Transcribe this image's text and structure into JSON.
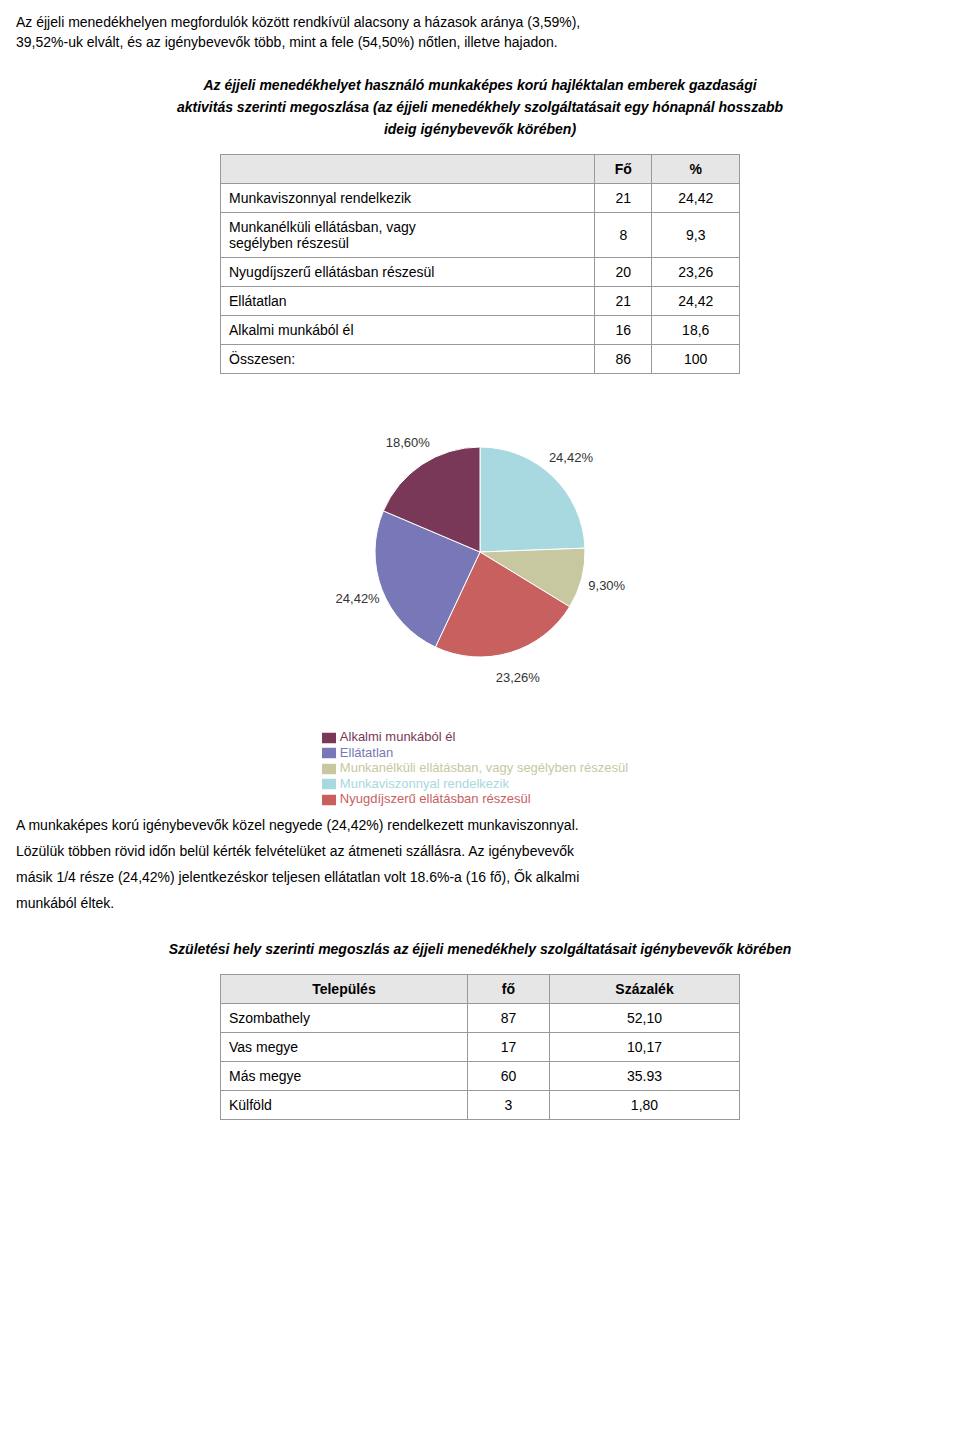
{
  "chart_data": [
    {
      "type": "table",
      "annotations": [
        "Az éjjeli menedékhelyen megfordulók között rendkívül alacsony a házasok aránya (3,59%),",
        "39,52%-uk elvált, és az igénybevevők több, mint a fele (54,50%) nőtlen, illetve hajadon."
      ],
      "title": "Az éjjeli menedékhelyet használó munkaképes korú hajléktalan emberek gazdasági\naktivitás szerinti megoszlása (az éjjeli menedékhely szolgáltatásait egy hónapnál hosszabb\nideig igénybevevők körében)",
      "columns": [
        null,
        "Fő",
        "%"
      ],
      "rows": [
        [
          "Munkaviszonnyal rendelkezik",
          "21",
          "24,42"
        ],
        [
          "Munkanélküli ellátásban, vagy\nsegélyben részesül",
          "8",
          "9,3"
        ],
        [
          "Nyugdíjszerű ellátásban részesül",
          "20",
          "23,26"
        ],
        [
          "Ellátatlan",
          "21",
          "24,42"
        ],
        [
          "Alkalmi munkából él",
          "16",
          "18,6"
        ],
        [
          "Összesen:",
          "86",
          "100"
        ]
      ]
    },
    {
      "type": "pie",
      "categories": [
        "Munkaviszonnyal rendelkezik",
        "Munkanélküli ellátásban, vagy segélyben részesül",
        "Nyugdíjszerű ellátásban részesül",
        "Ellátatlan",
        "Alkalmi munkából él"
      ],
      "values": [
        24.42,
        9.3,
        23.26,
        24.42,
        18.6
      ],
      "value_labels": [
        "24,42%",
        "9,30%",
        "23,26%",
        "24,42%",
        "18,60%"
      ],
      "colors": [
        "#a8d8e0",
        "#c8c8a0",
        "#c86060",
        "#7878b8",
        "#7a3858"
      ],
      "data_labels": true,
      "legend": "bottom",
      "annotations": [
        "A munkaképes korú igénybevevők közel negyede (24,42%) rendelkezett munkaviszonnyal.",
        "Lözülük többen rövid időn belül kérték felvételüket az átmeneti szállásra. Az igénybevevők",
        "másik 1/4 része (24,42%) jelentkezéskor teljesen ellátatlan volt 18.6%-a (16 fő), Ők alkalmi",
        "munkából éltek."
      ]
    },
    {
      "type": "table",
      "title": "Születési hely szerinti megoszlás az éjjeli menedékhely szolgáltatásait igénybevevők körében",
      "columns": [
        "Település",
        "fő",
        "Százalék"
      ],
      "rows": [
        [
          "Szombathely",
          "87",
          "52,10"
        ],
        [
          "Vas megye",
          "17",
          "10,17"
        ],
        [
          "Más megye",
          "60",
          "35.93"
        ],
        [
          "Külföld",
          "3",
          "1,80"
        ]
      ]
    }
  ]
}
